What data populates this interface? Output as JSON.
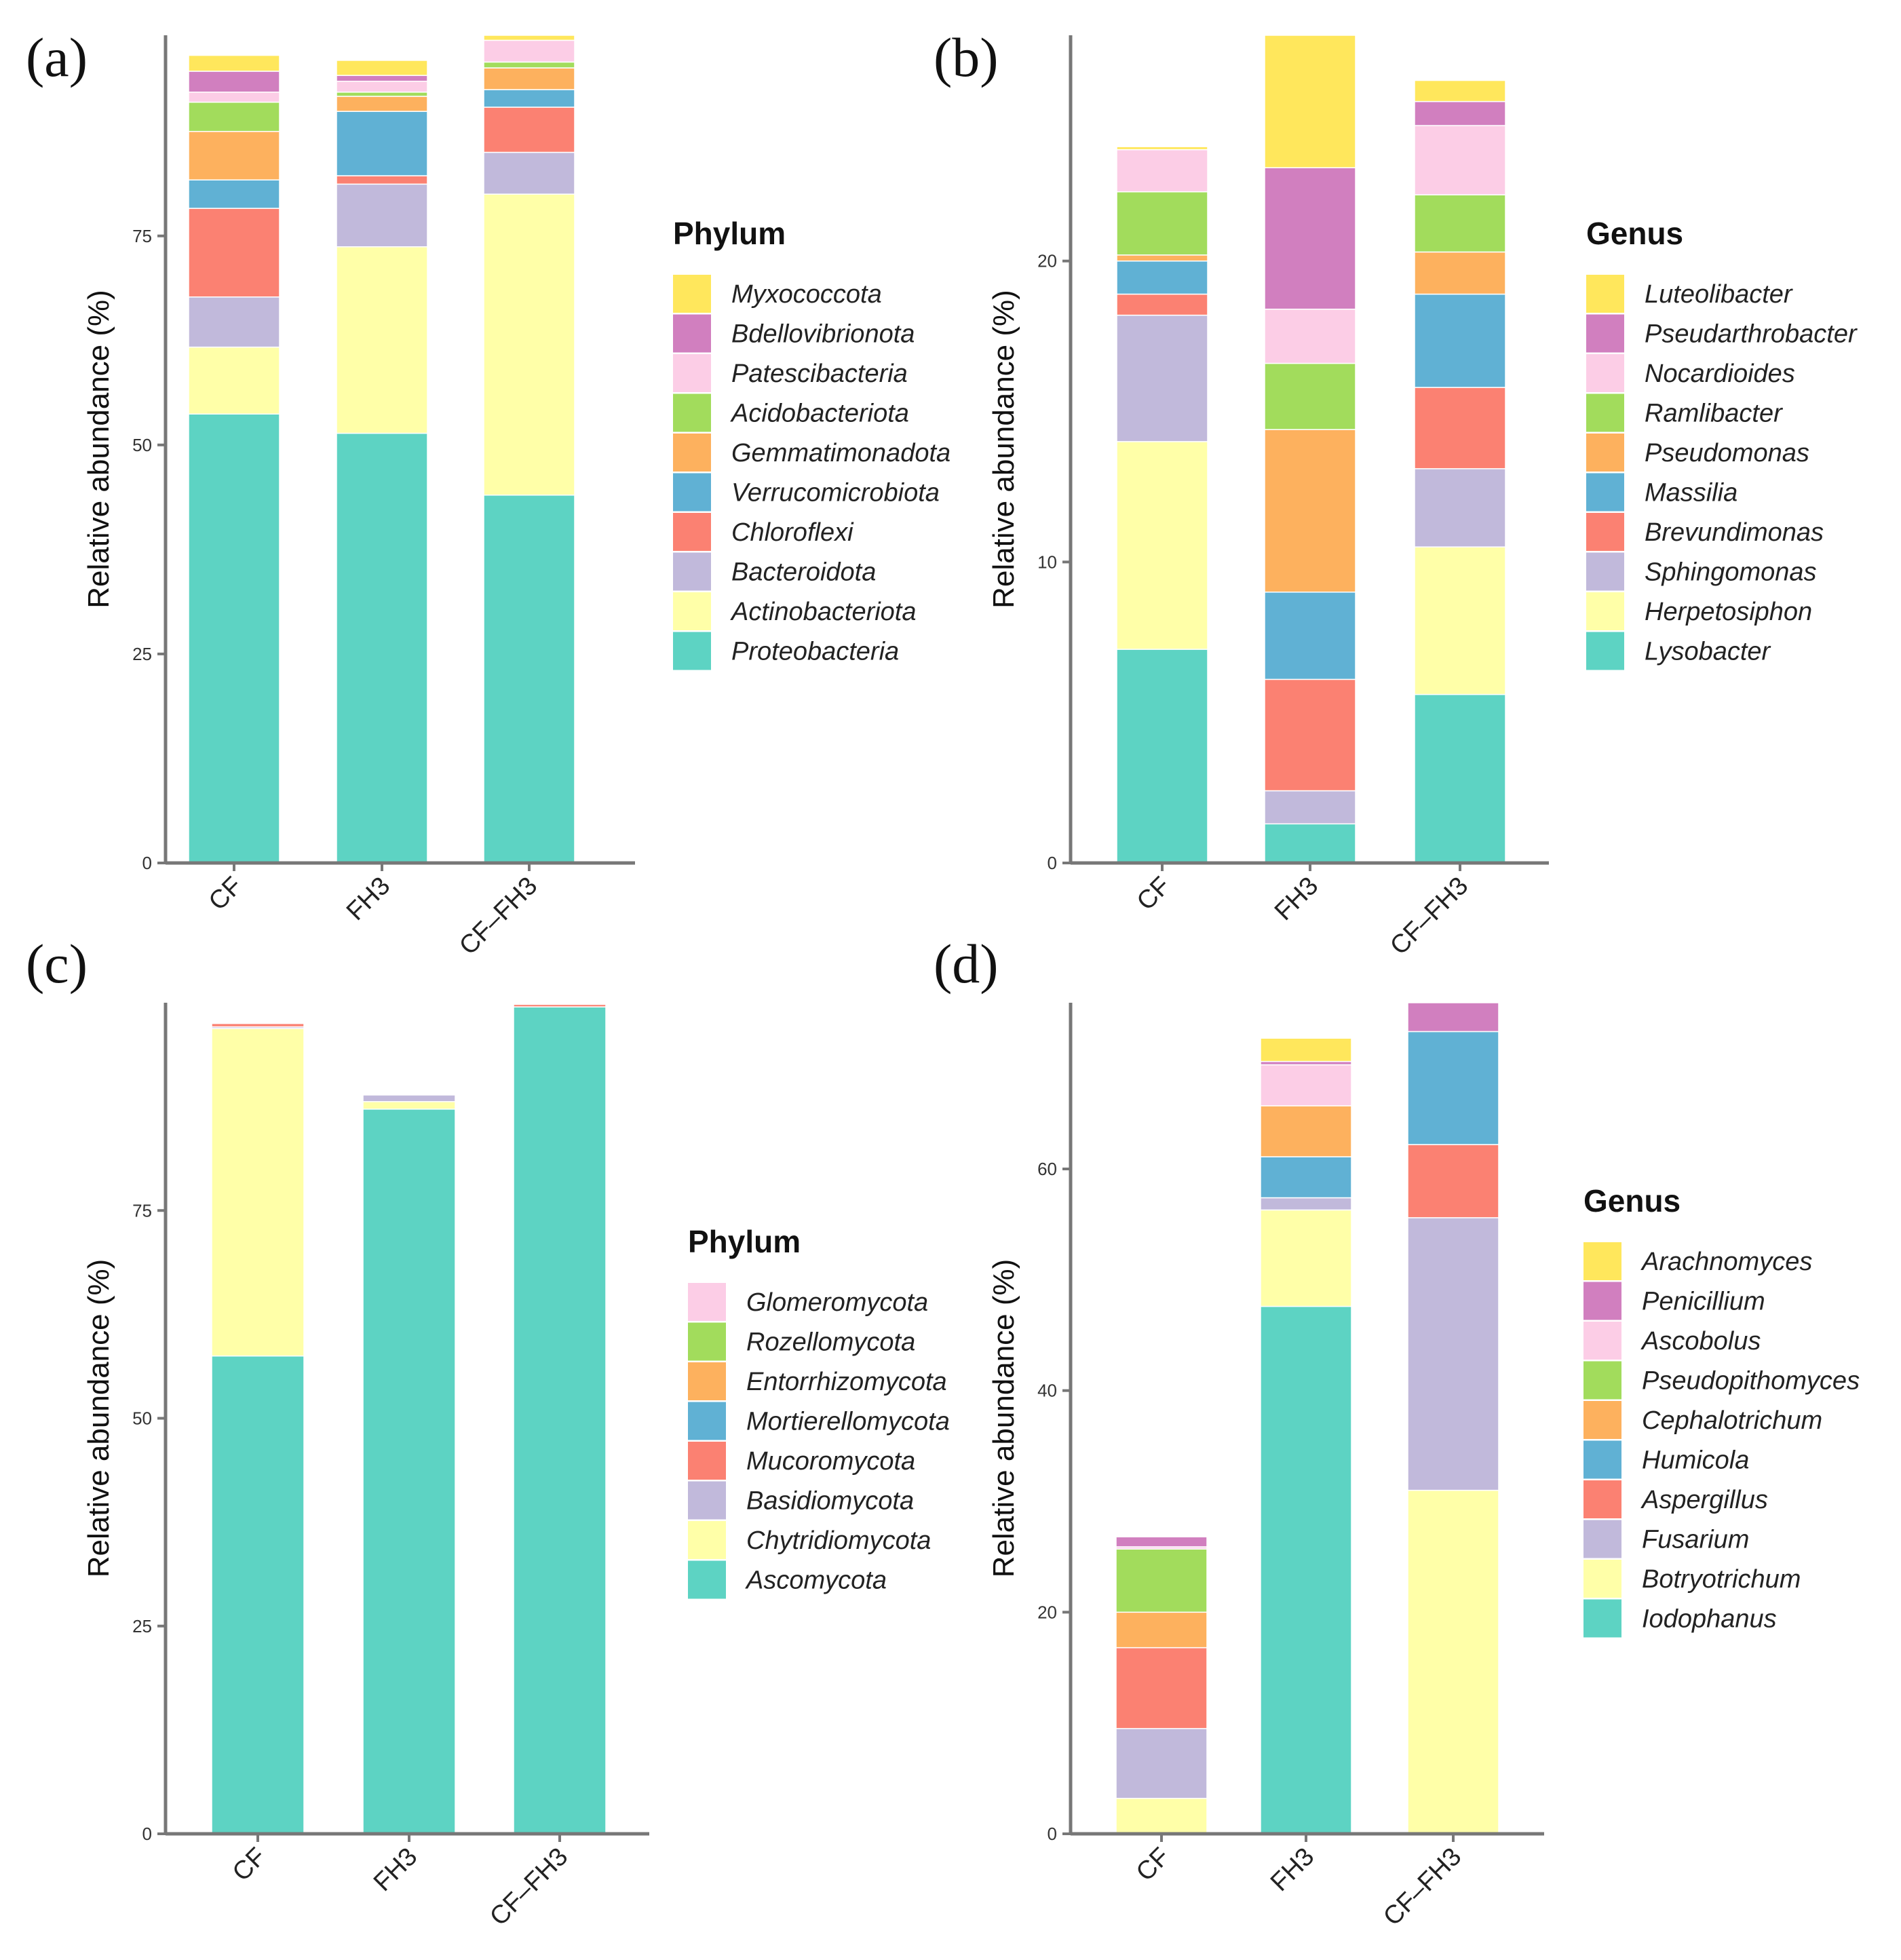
{
  "colors": {
    "teal": "#5dd3c3",
    "light_yellow": "#ffffa8",
    "lavender": "#c1b9db",
    "salmon": "#fb8172",
    "steel_blue": "#60b1d4",
    "orange": "#fdb15e",
    "green": "#a2dc5c",
    "pink": "#fccde6",
    "magenta": "#d17fbf",
    "yellow": "#ffe75c"
  },
  "chart_data": [
    {
      "type": "bar",
      "stacked": true,
      "panel": "(a)",
      "ylabel": "Relative abundance (%)",
      "categories": [
        "CF",
        "FH3",
        "CF–FH3"
      ],
      "ylim": [
        0,
        99
      ],
      "yticks": [
        0,
        25,
        50,
        75
      ],
      "legend_title": "Phylum",
      "legend_position": "right",
      "grid": false,
      "series": [
        {
          "name": "Proteobacteria",
          "color": "#5dd3c3",
          "values": [
            53.7,
            51.4,
            44.0
          ]
        },
        {
          "name": "Actinobacteriota",
          "color": "#ffffa8",
          "values": [
            8.0,
            22.3,
            36.0
          ]
        },
        {
          "name": "Bacteroidota",
          "color": "#c1b9db",
          "values": [
            6.0,
            7.5,
            5.0
          ]
        },
        {
          "name": "Chloroflexi",
          "color": "#fb8172",
          "values": [
            10.6,
            1.0,
            5.4
          ]
        },
        {
          "name": "Verrucomicrobiota",
          "color": "#60b1d4",
          "values": [
            3.4,
            7.7,
            2.1
          ]
        },
        {
          "name": "Gemmatimonadota",
          "color": "#fdb15e",
          "values": [
            5.8,
            1.8,
            2.6
          ]
        },
        {
          "name": "Acidobacteriota",
          "color": "#a2dc5c",
          "values": [
            3.5,
            0.5,
            0.7
          ]
        },
        {
          "name": "Patescibacteria",
          "color": "#fccde6",
          "values": [
            1.2,
            1.3,
            2.6
          ]
        },
        {
          "name": "Bdellovibrionota",
          "color": "#d17fbf",
          "values": [
            2.5,
            0.7,
            0.0
          ]
        },
        {
          "name": "Myxococcota",
          "color": "#ffe75c",
          "values": [
            1.9,
            1.8,
            0.6
          ]
        }
      ]
    },
    {
      "type": "bar",
      "stacked": true,
      "panel": "(b)",
      "ylabel": "Relative abundance (%)",
      "categories": [
        "CF",
        "FH3",
        "CF–FH3"
      ],
      "ylim": [
        0,
        27.5
      ],
      "yticks": [
        0,
        10,
        20
      ],
      "legend_title": "Genus",
      "legend_position": "right",
      "grid": false,
      "series": [
        {
          "name": "Lysobacter",
          "color": "#5dd3c3",
          "values": [
            7.1,
            1.3,
            5.6
          ]
        },
        {
          "name": "Herpetosiphon",
          "color": "#ffffa8",
          "values": [
            6.9,
            0.0,
            4.9
          ]
        },
        {
          "name": "Sphingomonas",
          "color": "#c1b9db",
          "values": [
            4.2,
            1.1,
            2.6
          ]
        },
        {
          "name": "Brevundimonas",
          "color": "#fb8172",
          "values": [
            0.7,
            3.7,
            2.7
          ]
        },
        {
          "name": "Massilia",
          "color": "#60b1d4",
          "values": [
            1.1,
            2.9,
            3.1
          ]
        },
        {
          "name": "Pseudomonas",
          "color": "#fdb15e",
          "values": [
            0.2,
            5.4,
            1.4
          ]
        },
        {
          "name": "Ramlibacter",
          "color": "#a2dc5c",
          "values": [
            2.1,
            2.2,
            1.9
          ]
        },
        {
          "name": "Nocardioides",
          "color": "#fccde6",
          "values": [
            1.4,
            1.8,
            2.3
          ]
        },
        {
          "name": "Pseudarthrobacter",
          "color": "#d17fbf",
          "values": [
            0.0,
            4.7,
            0.8
          ]
        },
        {
          "name": "Luteolibacter",
          "color": "#ffe75c",
          "values": [
            0.1,
            4.4,
            0.7
          ]
        }
      ]
    },
    {
      "type": "bar",
      "stacked": true,
      "panel": "(c)",
      "ylabel": "Relative abundance (%)",
      "categories": [
        "CF",
        "FH3",
        "CF–FH3"
      ],
      "ylim": [
        0,
        100
      ],
      "yticks": [
        0,
        25,
        50,
        75
      ],
      "legend_title": "Phylum",
      "legend_position": "right",
      "grid": false,
      "series": [
        {
          "name": "Ascomycota",
          "color": "#5dd3c3",
          "values": [
            57.5,
            87.2,
            99.5
          ]
        },
        {
          "name": "Chytridiomycota",
          "color": "#ffffa8",
          "values": [
            39.4,
            0.9,
            0.0
          ]
        },
        {
          "name": "Basidiomycota",
          "color": "#c1b9db",
          "values": [
            0.2,
            0.8,
            0.0
          ]
        },
        {
          "name": "Mucoromycota",
          "color": "#fb8172",
          "values": [
            0.4,
            0.0,
            0.3
          ]
        },
        {
          "name": "Mortierellomycota",
          "color": "#60b1d4",
          "values": [
            0.0,
            0.0,
            0.0
          ]
        },
        {
          "name": "Entorrhizomycota",
          "color": "#fdb15e",
          "values": [
            0.0,
            0.0,
            0.0
          ]
        },
        {
          "name": "Rozellomycota",
          "color": "#a2dc5c",
          "values": [
            0.0,
            0.0,
            0.0
          ]
        },
        {
          "name": "Glomeromycota",
          "color": "#fccde6",
          "values": [
            0.0,
            0.0,
            0.0
          ]
        }
      ]
    },
    {
      "type": "bar",
      "stacked": true,
      "panel": "(d)",
      "ylabel": "Relative abundance (%)",
      "categories": [
        "CF",
        "FH3",
        "CF–FH3"
      ],
      "ylim": [
        0,
        75
      ],
      "yticks": [
        0,
        20,
        40,
        60
      ],
      "legend_title": "Genus",
      "legend_position": "right",
      "grid": false,
      "series": [
        {
          "name": "Iodophanus",
          "color": "#5dd3c3",
          "values": [
            0.0,
            47.6,
            0.0
          ]
        },
        {
          "name": "Botryotrichum",
          "color": "#ffffa8",
          "values": [
            3.2,
            8.7,
            31.0
          ]
        },
        {
          "name": "Fusarium",
          "color": "#c1b9db",
          "values": [
            6.3,
            1.1,
            24.6
          ]
        },
        {
          "name": "Aspergillus",
          "color": "#fb8172",
          "values": [
            7.3,
            0.0,
            6.6
          ]
        },
        {
          "name": "Humicola",
          "color": "#60b1d4",
          "values": [
            0.0,
            3.7,
            10.2
          ]
        },
        {
          "name": "Cephalotrichum",
          "color": "#fdb15e",
          "values": [
            3.2,
            4.6,
            0.0
          ]
        },
        {
          "name": "Pseudopithomyces",
          "color": "#a2dc5c",
          "values": [
            5.7,
            0.0,
            0.0
          ]
        },
        {
          "name": "Ascobolus",
          "color": "#fccde6",
          "values": [
            0.2,
            3.7,
            0.0
          ]
        },
        {
          "name": "Penicillium",
          "color": "#d17fbf",
          "values": [
            0.9,
            0.3,
            2.6
          ]
        },
        {
          "name": "Arachnomyces",
          "color": "#ffe75c",
          "values": [
            0.0,
            2.1,
            0.0
          ]
        }
      ]
    }
  ]
}
